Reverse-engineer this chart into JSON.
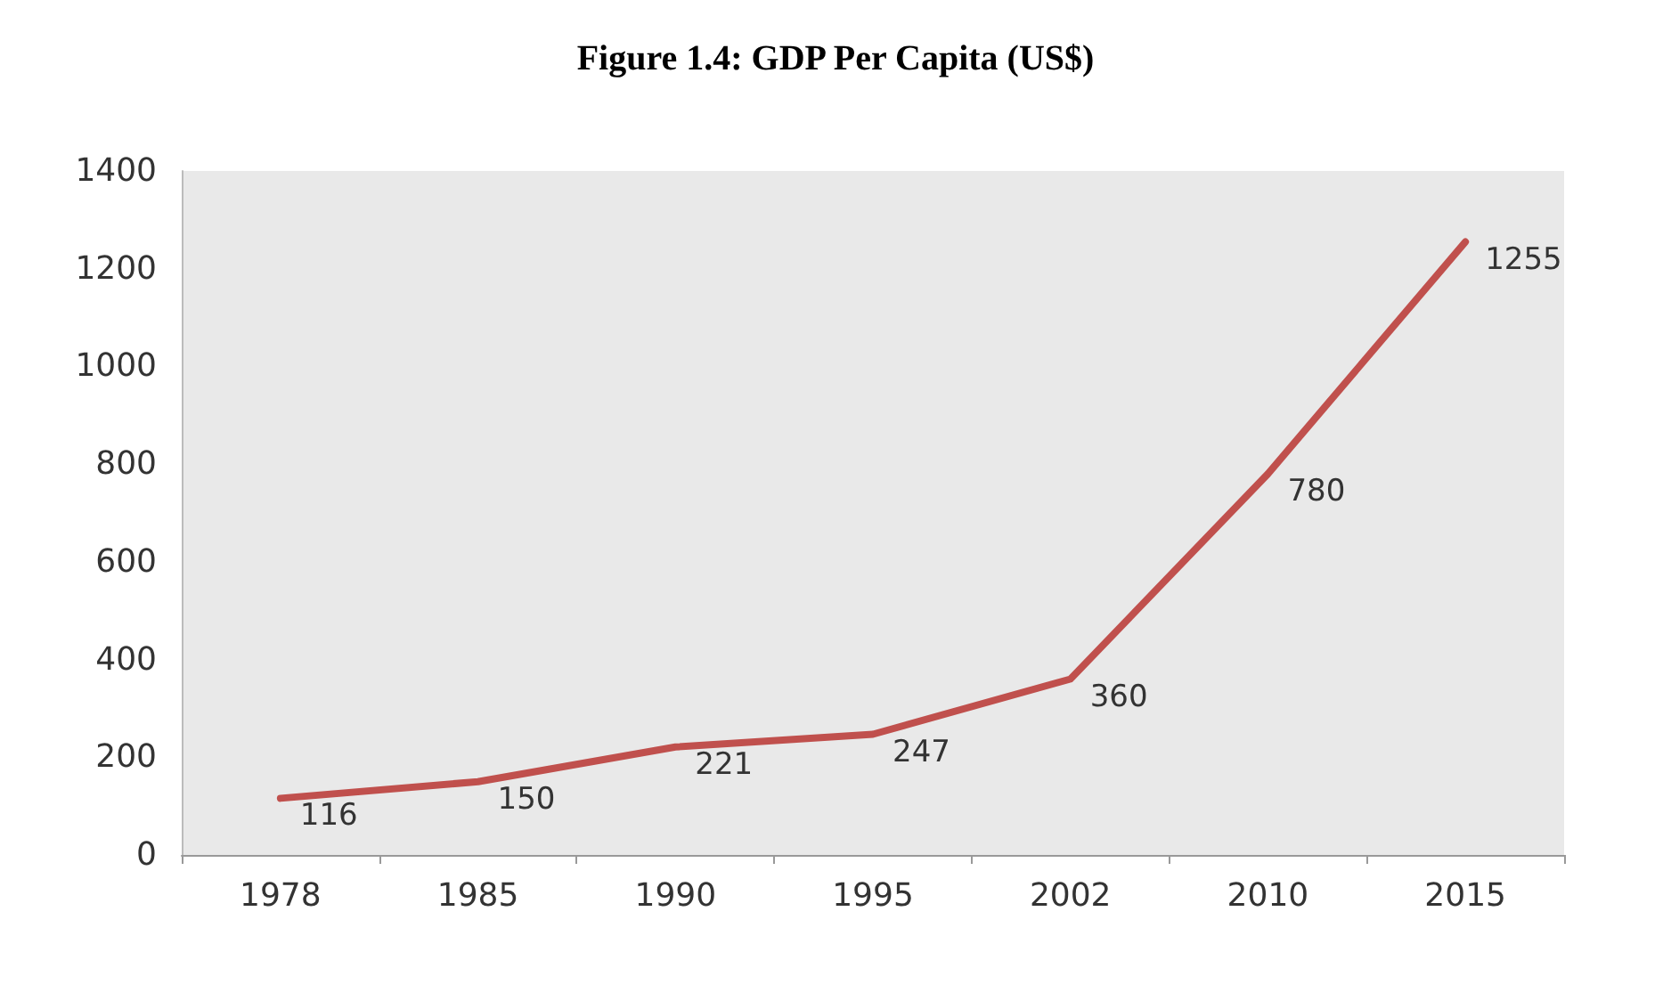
{
  "chart_data": {
    "type": "line",
    "title": "Figure 1.4: GDP Per Capita (US$)",
    "categories": [
      "1978",
      "1985",
      "1990",
      "1995",
      "2002",
      "2010",
      "2015"
    ],
    "series": [
      {
        "color": "#c0504d",
        "values": [
          116,
          150,
          221,
          247,
          360,
          780,
          1255
        ]
      }
    ],
    "ylim": [
      0,
      1400
    ],
    "yticks": [
      0,
      200,
      400,
      600,
      800,
      1000,
      1200,
      1400
    ],
    "data_labels": true,
    "grid": false,
    "marker": "none",
    "line_style": "solid"
  }
}
